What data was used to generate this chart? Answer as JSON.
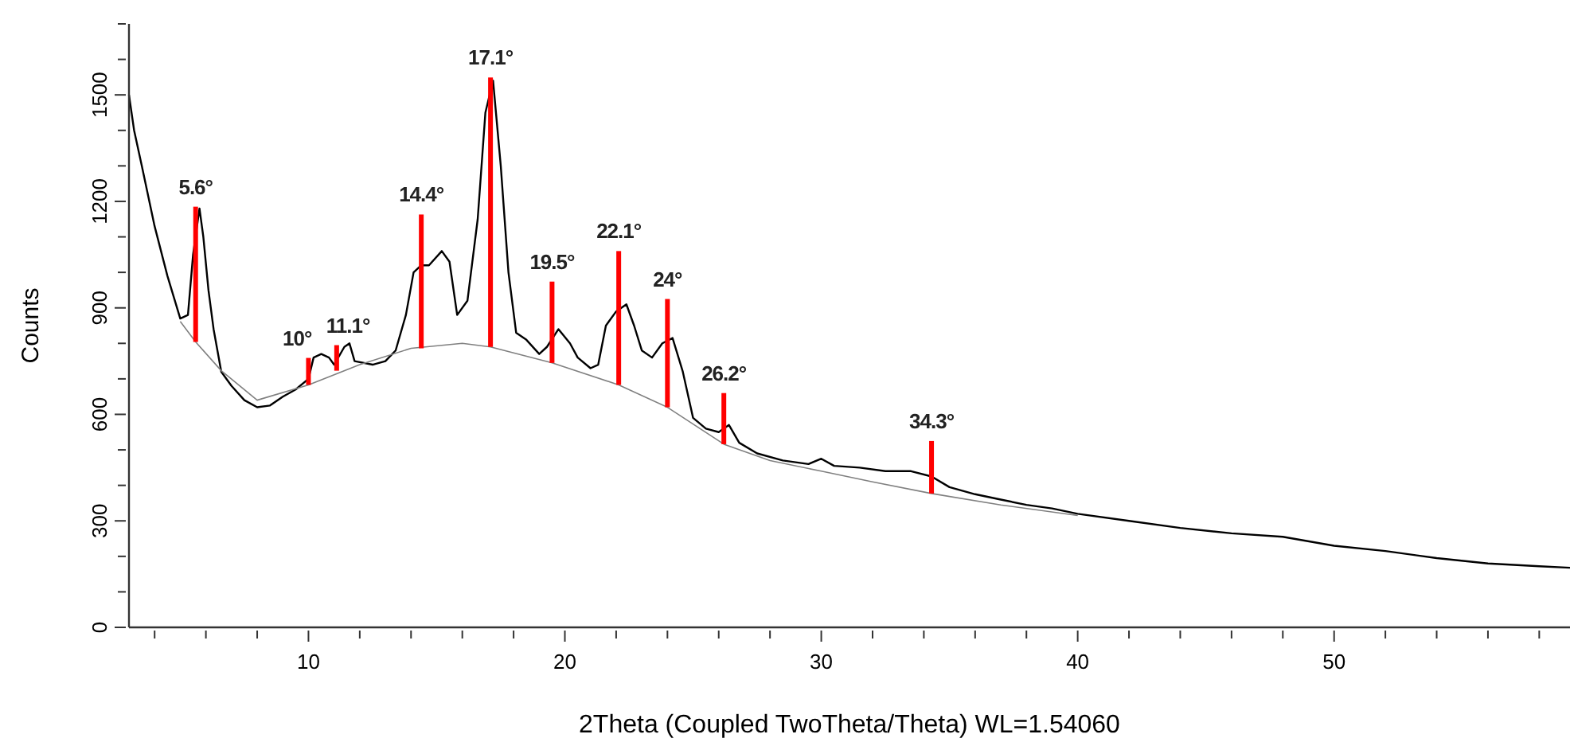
{
  "chart_data": {
    "type": "line",
    "xlabel": "2Theta (Coupled TwoTheta/Theta) WL=1.54060",
    "ylabel": "Counts",
    "xlim": [
      3,
      59.2
    ],
    "ylim": [
      0,
      1700
    ],
    "xticks": [
      {
        "value": 4,
        "label": null
      },
      {
        "value": 6,
        "label": null
      },
      {
        "value": 8,
        "label": null
      },
      10,
      {
        "value": 12,
        "label": null
      },
      {
        "value": 14,
        "label": null
      },
      {
        "value": 16,
        "label": null
      },
      {
        "value": 18,
        "label": null
      },
      20,
      {
        "value": 22,
        "label": null
      },
      {
        "value": 24,
        "label": null
      },
      {
        "value": 26,
        "label": null
      },
      {
        "value": 28,
        "label": null
      },
      30,
      {
        "value": 32,
        "label": null
      },
      {
        "value": 34,
        "label": null
      },
      {
        "value": 36,
        "label": null
      },
      {
        "value": 38,
        "label": null
      },
      40,
      {
        "value": 42,
        "label": null
      },
      {
        "value": 44,
        "label": null
      },
      {
        "value": 46,
        "label": null
      },
      {
        "value": 48,
        "label": null
      },
      50,
      {
        "value": 52,
        "label": null
      },
      {
        "value": 54,
        "label": null
      },
      {
        "value": 56,
        "label": null
      },
      {
        "value": 58,
        "label": null
      }
    ],
    "yticks": [
      0,
      {
        "value": 100,
        "label": null
      },
      {
        "value": 200,
        "label": null
      },
      300,
      {
        "value": 400,
        "label": null
      },
      {
        "value": 500,
        "label": null
      },
      600,
      {
        "value": 700,
        "label": null
      },
      {
        "value": 800,
        "label": null
      },
      900,
      {
        "value": 1000,
        "label": null
      },
      {
        "value": 1100,
        "label": null
      },
      1200,
      {
        "value": 1300,
        "label": null
      },
      {
        "value": 1400,
        "label": null
      },
      1500,
      {
        "value": 1600,
        "label": null
      },
      {
        "value": 1700,
        "label": null
      }
    ],
    "series": [
      {
        "color": "#000000",
        "x": [
          3,
          3.2,
          3.5,
          4,
          4.5,
          5,
          5.3,
          5.5,
          5.75,
          5.9,
          6.1,
          6.3,
          6.6,
          7,
          7.5,
          8,
          8.5,
          9,
          9.5,
          10,
          10.2,
          10.5,
          10.8,
          11,
          11.4,
          11.6,
          11.8,
          12.5,
          13,
          13.4,
          13.8,
          14.1,
          14.4,
          14.7,
          15.2,
          15.5,
          15.8,
          16.2,
          16.6,
          16.9,
          17.2,
          17.5,
          17.8,
          18.1,
          18.5,
          19,
          19.3,
          19.75,
          20.2,
          20.5,
          21,
          21.3,
          21.6,
          22,
          22.4,
          22.7,
          23,
          23.4,
          23.8,
          24.2,
          24.6,
          25,
          25.5,
          26,
          26.4,
          26.8,
          27.5,
          28.5,
          29.5,
          30,
          30.5,
          31.5,
          32.5,
          33.5,
          34.3,
          35,
          36,
          37,
          38,
          39,
          40,
          42,
          44,
          46,
          48,
          50,
          52,
          54,
          56,
          58,
          59.2
        ],
        "values": [
          1500,
          1400,
          1300,
          1130,
          990,
          870,
          880,
          1050,
          1180,
          1100,
          950,
          840,
          720,
          680,
          640,
          620,
          625,
          650,
          670,
          700,
          760,
          770,
          760,
          740,
          790,
          800,
          750,
          740,
          750,
          780,
          880,
          1000,
          1020,
          1020,
          1060,
          1030,
          880,
          920,
          1150,
          1450,
          1540,
          1300,
          1000,
          830,
          810,
          770,
          790,
          840,
          800,
          760,
          730,
          740,
          850,
          890,
          910,
          850,
          780,
          760,
          800,
          815,
          720,
          590,
          560,
          550,
          570,
          520,
          490,
          470,
          460,
          475,
          455,
          450,
          440,
          440,
          425,
          395,
          375,
          360,
          345,
          335,
          320,
          300,
          280,
          265,
          255,
          230,
          215,
          195,
          180,
          172,
          168
        ]
      },
      {
        "color": "#808080",
        "x": [
          5,
          5.6,
          6.6,
          8,
          10,
          12,
          14,
          16,
          17.1,
          19.5,
          22.1,
          24,
          26.2,
          28,
          30,
          32,
          34.3,
          37,
          40
        ],
        "values": [
          862,
          804,
          723,
          640,
          683,
          740,
          786,
          800,
          790,
          745,
          683,
          620,
          516,
          470,
          440,
          410,
          377,
          345,
          315
        ]
      },
      {
        "type": "bar",
        "color": "#ff0000",
        "x": [
          5.6,
          10,
          11.1,
          14.4,
          17.1,
          19.5,
          22.1,
          24,
          26.2,
          34.3
        ],
        "base": [
          804,
          683,
          723,
          786,
          790,
          745,
          683,
          620,
          516,
          377
        ],
        "values": [
          381,
          76,
          72,
          377,
          759,
          229,
          377,
          305,
          144,
          148
        ]
      }
    ],
    "annotations": [
      {
        "text": "5.6°",
        "x": 5.6,
        "y": 1185
      },
      {
        "text": "10°",
        "x": 10,
        "y": 759
      },
      {
        "text": "11.1°",
        "x": 11.1,
        "y": 795
      },
      {
        "text": "14.4°",
        "x": 14.4,
        "y": 1163
      },
      {
        "text": "17.1°",
        "x": 17.1,
        "y": 1549
      },
      {
        "text": "19.5°",
        "x": 19.5,
        "y": 974
      },
      {
        "text": "22.1°",
        "x": 22.1,
        "y": 1060
      },
      {
        "text": "24°",
        "x": 24,
        "y": 925
      },
      {
        "text": "26.2°",
        "x": 26.2,
        "y": 660
      },
      {
        "text": "34.3°",
        "x": 34.3,
        "y": 525
      }
    ]
  }
}
